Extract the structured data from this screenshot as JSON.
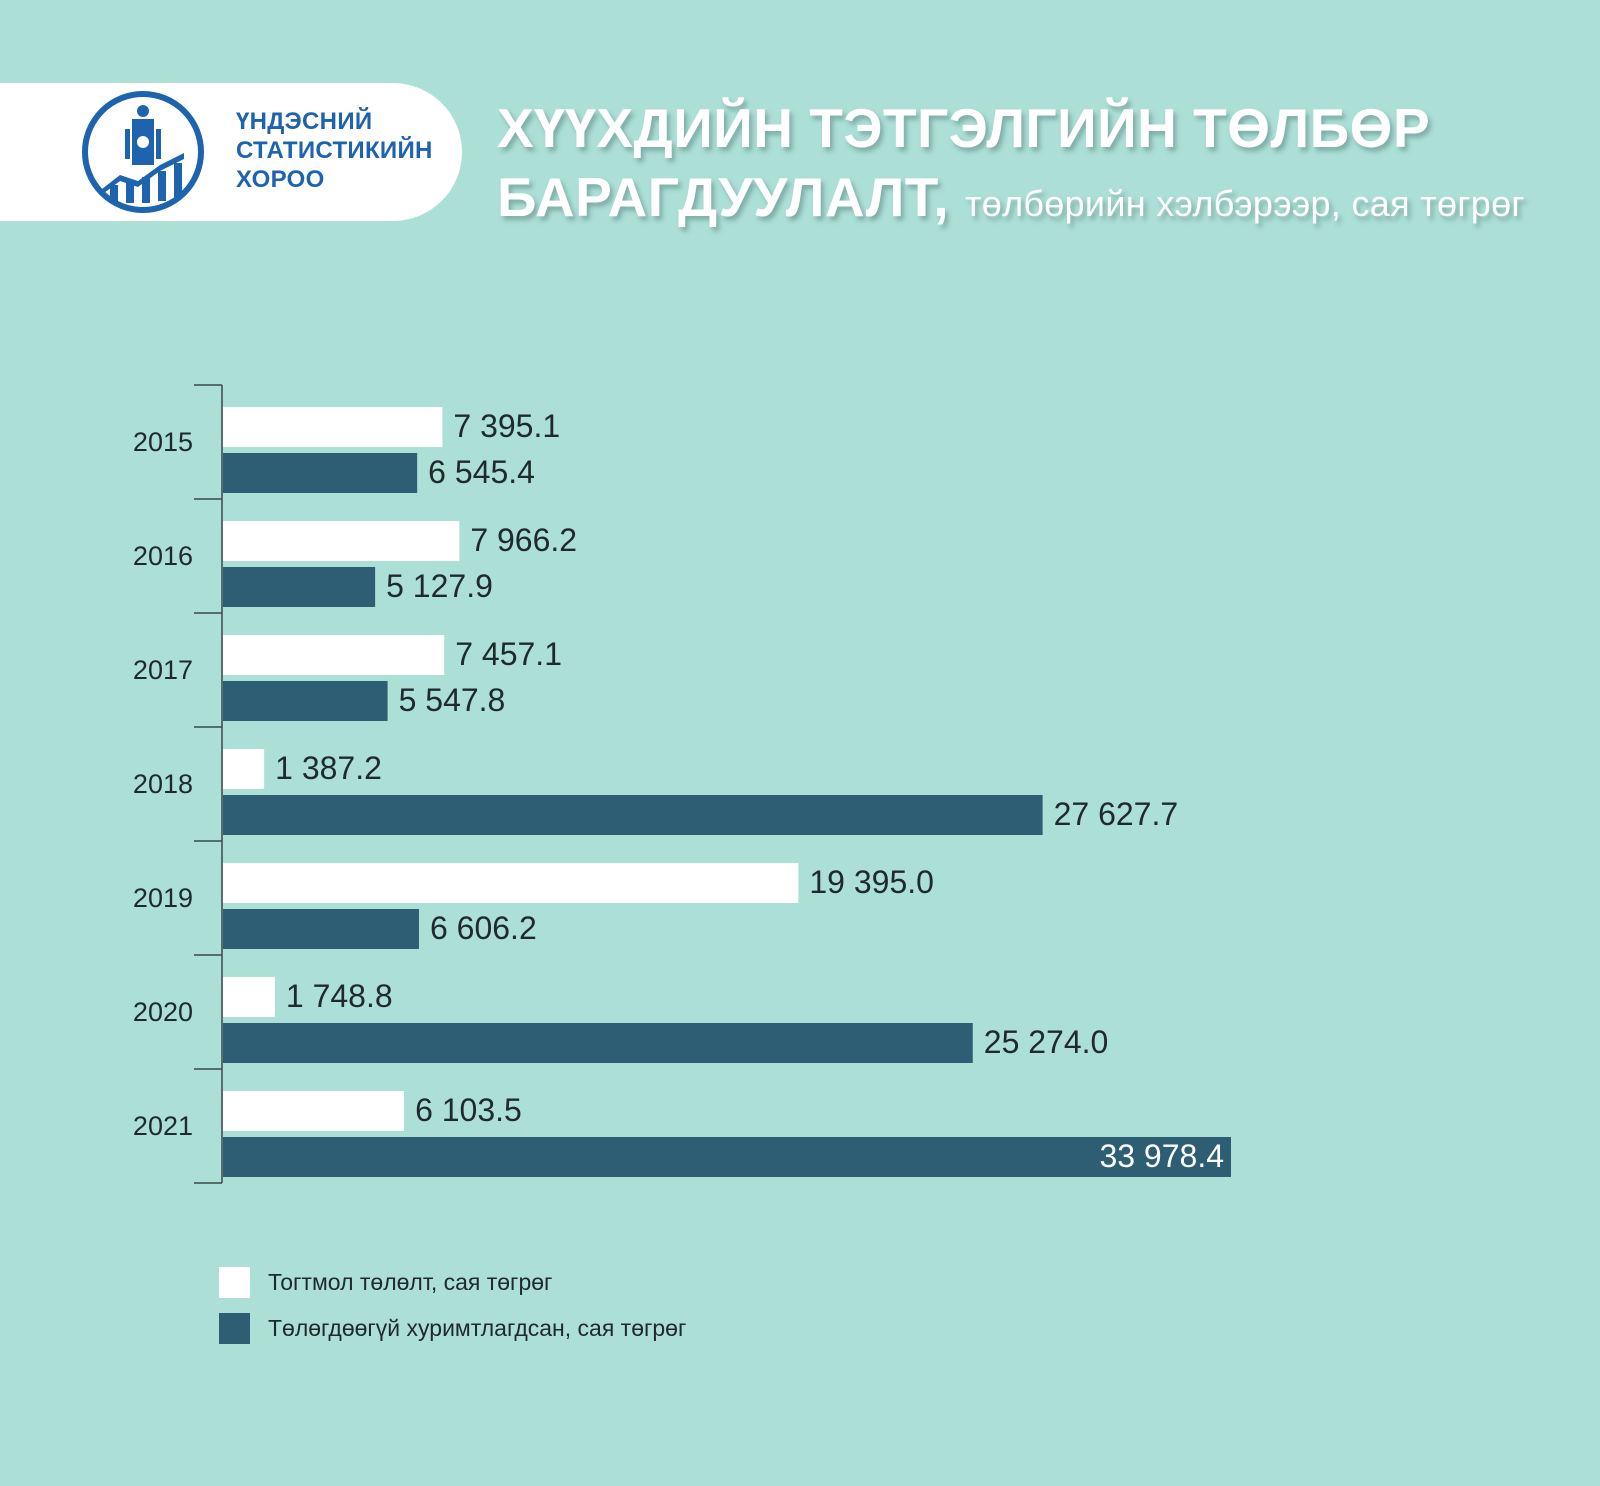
{
  "header": {
    "org_line1": "ҮНДЭСНИЙ",
    "org_line2": "СТАТИСТИКИЙН",
    "org_line3": "ХОРОО",
    "title_line1": "ХҮҮХДИЙН ТЭТГЭЛГИЙН ТӨЛБӨР",
    "title_line2": "БАРАГДУУЛАЛТ,",
    "title_sub": "төлбөрийн хэлбэрээр, сая төгрөг"
  },
  "colors": {
    "background": "#acdfd5",
    "series_white": "#ffffff",
    "series_dark": "#2d5e74",
    "logo_blue": "#1e63ad"
  },
  "chart_data": {
    "type": "bar",
    "orientation": "horizontal",
    "categories": [
      "2015",
      "2016",
      "2017",
      "2018",
      "2019",
      "2020",
      "2021"
    ],
    "series": [
      {
        "name": "Тогтмол төлөлт, сая төгрөг",
        "values": [
          7395.1,
          7966.2,
          7457.1,
          1387.2,
          19395.0,
          1748.8,
          6103.5
        ],
        "labels": [
          "7 395.1",
          "7 966.2",
          "7 457.1",
          "1 387.2",
          "19 395.0",
          "1 748.8",
          "6 103.5"
        ],
        "color": "#ffffff"
      },
      {
        "name": "Төлөгдөөгүй хуримтлагдсан, сая төгрөг",
        "values": [
          6545.4,
          5127.9,
          5547.8,
          27627.7,
          6606.2,
          25274.0,
          33978.4
        ],
        "labels": [
          "6 545.4",
          "5 127.9",
          "5 547.8",
          "27 627.7",
          "6 606.2",
          "25 274.0",
          "33 978.4"
        ],
        "color": "#2d5e74"
      }
    ],
    "xlim": [
      0,
      33978.4
    ],
    "grid": false,
    "legend_position": "bottom-left"
  }
}
